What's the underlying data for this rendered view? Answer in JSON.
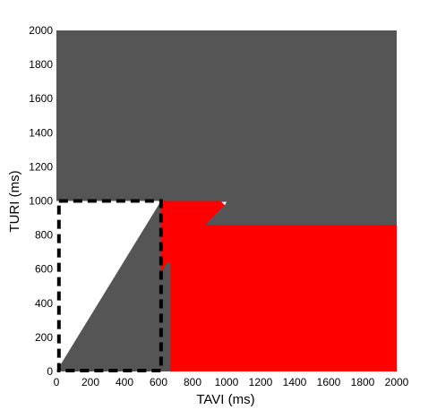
{
  "chart_data": {
    "type": "area",
    "xlabel": "TAVI (ms)",
    "ylabel": "TURI (ms)",
    "xlim": [
      0,
      2000
    ],
    "ylim": [
      0,
      2000
    ],
    "xticks": [
      0,
      200,
      400,
      600,
      800,
      1000,
      1200,
      1400,
      1600,
      1800,
      2000
    ],
    "yticks": [
      0,
      200,
      400,
      600,
      800,
      1000,
      1200,
      1400,
      1600,
      1800,
      2000
    ],
    "grid": false,
    "legend": "none",
    "regions": [
      {
        "color": "#555555",
        "points": [
          [
            0,
            0
          ],
          [
            2000,
            0
          ],
          [
            2000,
            2000
          ],
          [
            0,
            2000
          ]
        ]
      },
      {
        "color": "#ff0000",
        "points": [
          [
            670,
            0
          ],
          [
            2000,
            0
          ],
          [
            2000,
            860
          ],
          [
            875,
            860
          ],
          [
            995,
            985
          ],
          [
            970,
            1000
          ],
          [
            615,
            1000
          ],
          [
            615,
            580
          ],
          [
            650,
            640
          ],
          [
            670,
            640
          ]
        ]
      },
      {
        "color": "#ffffff",
        "points": [
          [
            0,
            0
          ],
          [
            615,
            1000
          ],
          [
            0,
            1000
          ]
        ]
      },
      {
        "color": "#ffffff",
        "points": [
          [
            970,
            995
          ],
          [
            1000,
            995
          ],
          [
            990,
            975
          ]
        ]
      }
    ],
    "dashed_box": {
      "color": "#000000",
      "x": [
        20,
        615
      ],
      "y": [
        0,
        1000
      ]
    }
  }
}
